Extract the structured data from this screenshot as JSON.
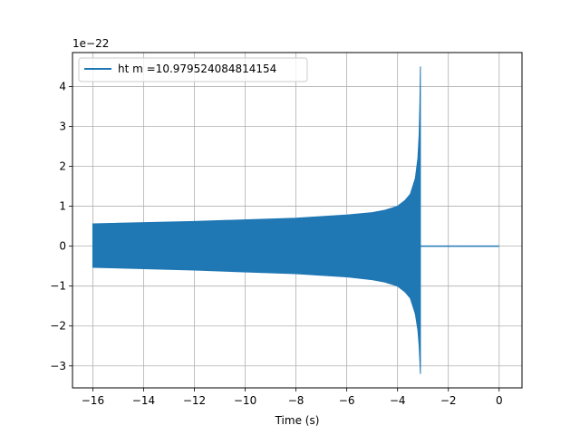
{
  "chart_data": {
    "type": "line",
    "title": "",
    "xlabel": "Time (s)",
    "ylabel": "",
    "y_scale_label": "1e−22",
    "xlim": [
      -16.8,
      0.9
    ],
    "ylim": [
      -3.55,
      4.85
    ],
    "xticks": [
      -16,
      -14,
      -12,
      -10,
      -8,
      -6,
      -4,
      -2,
      0
    ],
    "xtick_labels": [
      "−16",
      "−14",
      "−12",
      "−10",
      "−8",
      "−6",
      "−4",
      "−2",
      "0"
    ],
    "yticks": [
      -3,
      -2,
      -1,
      0,
      1,
      2,
      3,
      4
    ],
    "ytick_labels": [
      "−3",
      "−2",
      "−1",
      "0",
      "1",
      "2",
      "3",
      "4"
    ],
    "grid": true,
    "legend_position": "top-left",
    "series": [
      {
        "name": "ht m =10.979524084814154",
        "color": "#1f77b4",
        "envelope": {
          "x": [
            -16.0,
            -12.0,
            -8.0,
            -6.0,
            -5.0,
            -4.5,
            -4.0,
            -3.7,
            -3.5,
            -3.3,
            -3.2,
            -3.15,
            -3.12,
            -3.1
          ],
          "upper": [
            0.56,
            0.62,
            0.7,
            0.78,
            0.84,
            0.9,
            1.0,
            1.15,
            1.3,
            1.7,
            2.2,
            2.8,
            3.6,
            4.5
          ],
          "lower": [
            -0.53,
            -0.6,
            -0.69,
            -0.77,
            -0.84,
            -0.9,
            -1.0,
            -1.15,
            -1.3,
            -1.7,
            -2.1,
            -2.5,
            -2.9,
            -3.2
          ]
        },
        "ringdown": {
          "x": [
            -3.1,
            0.0
          ],
          "y": [
            0.0,
            0.0
          ]
        }
      }
    ]
  }
}
